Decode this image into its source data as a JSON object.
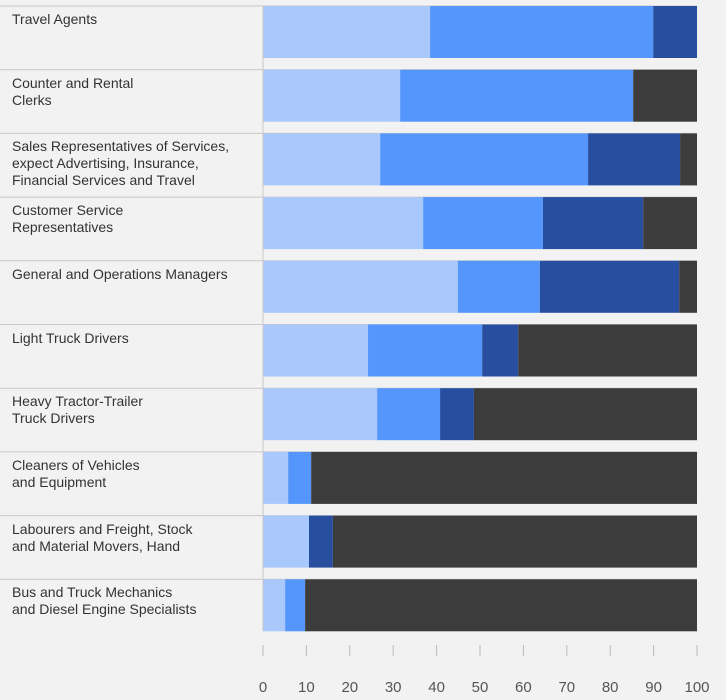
{
  "chart_data": {
    "type": "stacked-bar-horizontal",
    "categories": [
      "Travel Agents",
      "Counter and Rental\nClerks",
      "Sales Representatives of Services,\nexpect Advertising, Insurance,\nFinancial Services and Travel",
      "Customer Service\nRepresentatives",
      "General and Operations Managers",
      "Light Truck Drivers",
      "Heavy Tractor-Trailer\nTruck Drivers",
      "Cleaners of Vehicles\nand Equipment",
      "Labourers and Freight, Stock\nand Material Movers, Hand",
      "Bus and Truck Mechanics\nand Diesel Engine Specialists"
    ],
    "series": [
      {
        "color": "#a9c8fb",
        "values": [
          38.5,
          31.6,
          27,
          36.9,
          44.9,
          24.2,
          26.3,
          5.8,
          10.6,
          5.1
        ]
      },
      {
        "color": "#5496fb",
        "values": [
          51.4,
          53.7,
          47.9,
          27.6,
          18.9,
          26.3,
          14.5,
          5.3,
          0,
          4.6
        ]
      },
      {
        "color": "#284ea0",
        "values": [
          10.1,
          0,
          21.2,
          23.1,
          32.1,
          8.3,
          7.8,
          0,
          5.5,
          0
        ]
      },
      {
        "color": "#3c3c3c",
        "values": [
          0,
          14.7,
          3.9,
          12.4,
          4.1,
          41.2,
          51.4,
          88.9,
          83.9,
          90.3
        ]
      }
    ],
    "xlim": [
      0,
      100
    ],
    "xticks": [
      0,
      10,
      20,
      30,
      40,
      50,
      60,
      70,
      80,
      90,
      100
    ]
  }
}
